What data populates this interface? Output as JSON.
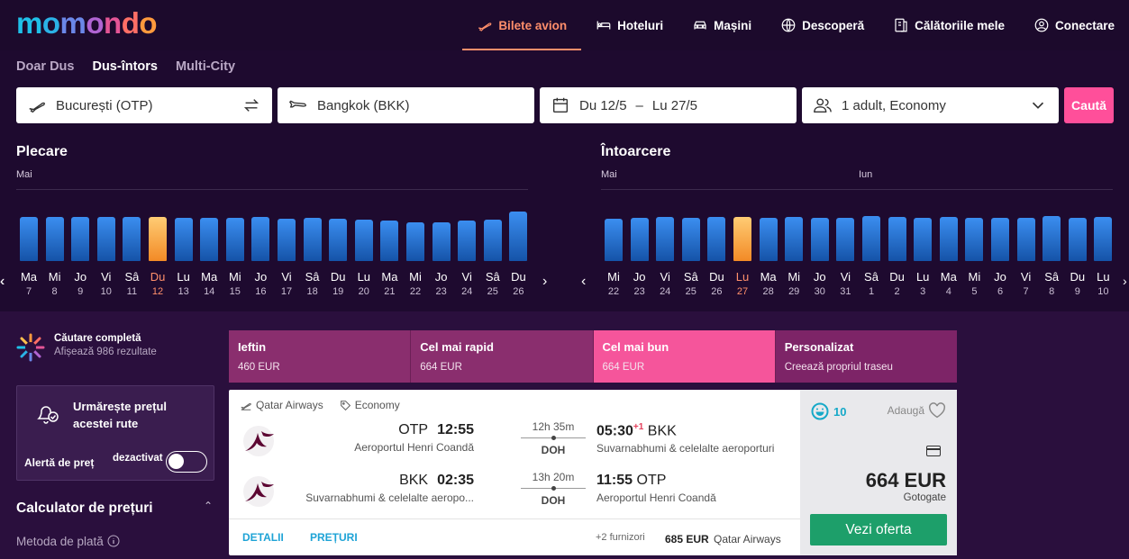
{
  "logo": {
    "text": "momondo",
    "letters": [
      {
        "c": "m",
        "color": "#1fc0e8"
      },
      {
        "c": "o",
        "color": "#2bb2e6"
      },
      {
        "c": "m",
        "color": "#6b87e8"
      },
      {
        "c": "o",
        "color": "#b064d2"
      },
      {
        "c": "n",
        "color": "#e45596"
      },
      {
        "c": "d",
        "color": "#ff6f66"
      },
      {
        "c": "o",
        "color": "#ff9a3d"
      }
    ]
  },
  "nav": [
    {
      "label": "Bilete avion",
      "icon": "plane-icon",
      "active": true
    },
    {
      "label": "Hoteluri",
      "icon": "bed-icon"
    },
    {
      "label": "Mașini",
      "icon": "car-icon"
    },
    {
      "label": "Descoperă",
      "icon": "globe-icon"
    },
    {
      "label": "Călătoriile mele",
      "icon": "trips-icon"
    },
    {
      "label": "Conectare",
      "icon": "user-icon"
    }
  ],
  "trip_tabs": [
    {
      "label": "Doar Dus"
    },
    {
      "label": "Dus-întors",
      "active": true
    },
    {
      "label": "Multi-City"
    }
  ],
  "search": {
    "origin": "București (OTP)",
    "destination": "Bangkok (BKK)",
    "date_from": "Du 12/5",
    "date_sep": "–",
    "date_to": "Lu 27/5",
    "travellers": "1 adult, Economy",
    "button": "Caută"
  },
  "departure": {
    "title": "Plecare",
    "months": [
      {
        "label": "Mai"
      }
    ],
    "days": [
      {
        "n": "Ma",
        "d": "7",
        "v": 0.88
      },
      {
        "n": "Mi",
        "d": "8",
        "v": 0.88
      },
      {
        "n": "Jo",
        "d": "9",
        "v": 0.88
      },
      {
        "n": "Vi",
        "d": "10",
        "v": 0.88
      },
      {
        "n": "Sâ",
        "d": "11",
        "v": 0.88
      },
      {
        "n": "Du",
        "d": "12",
        "v": 0.88,
        "sel": true
      },
      {
        "n": "Lu",
        "d": "13",
        "v": 0.86
      },
      {
        "n": "Ma",
        "d": "14",
        "v": 0.86
      },
      {
        "n": "Mi",
        "d": "15",
        "v": 0.86
      },
      {
        "n": "Jo",
        "d": "16",
        "v": 0.88
      },
      {
        "n": "Vi",
        "d": "17",
        "v": 0.84
      },
      {
        "n": "Sâ",
        "d": "18",
        "v": 0.86
      },
      {
        "n": "Du",
        "d": "19",
        "v": 0.84
      },
      {
        "n": "Lu",
        "d": "20",
        "v": 0.82
      },
      {
        "n": "Ma",
        "d": "21",
        "v": 0.8
      },
      {
        "n": "Mi",
        "d": "22",
        "v": 0.76
      },
      {
        "n": "Jo",
        "d": "23",
        "v": 0.77
      },
      {
        "n": "Vi",
        "d": "24",
        "v": 0.8
      },
      {
        "n": "Sâ",
        "d": "25",
        "v": 0.82
      },
      {
        "n": "Du",
        "d": "26",
        "v": 0.98
      }
    ]
  },
  "return": {
    "title": "Întoarcere",
    "months": [
      {
        "label": "Mai"
      },
      {
        "label": "Iun"
      }
    ],
    "days": [
      {
        "n": "Mi",
        "d": "22",
        "v": 0.84
      },
      {
        "n": "Jo",
        "d": "23",
        "v": 0.86
      },
      {
        "n": "Vi",
        "d": "24",
        "v": 0.88
      },
      {
        "n": "Sâ",
        "d": "25",
        "v": 0.86
      },
      {
        "n": "Du",
        "d": "26",
        "v": 0.88
      },
      {
        "n": "Lu",
        "d": "27",
        "v": 0.88,
        "sel": true
      },
      {
        "n": "Ma",
        "d": "28",
        "v": 0.86
      },
      {
        "n": "Mi",
        "d": "29",
        "v": 0.88
      },
      {
        "n": "Jo",
        "d": "30",
        "v": 0.86
      },
      {
        "n": "Vi",
        "d": "31",
        "v": 0.86
      },
      {
        "n": "Sâ",
        "d": "1",
        "v": 0.9
      },
      {
        "n": "Du",
        "d": "2",
        "v": 0.88
      },
      {
        "n": "Lu",
        "d": "3",
        "v": 0.86
      },
      {
        "n": "Ma",
        "d": "4",
        "v": 0.88
      },
      {
        "n": "Mi",
        "d": "5",
        "v": 0.86
      },
      {
        "n": "Jo",
        "d": "6",
        "v": 0.86
      },
      {
        "n": "Vi",
        "d": "7",
        "v": 0.86
      },
      {
        "n": "Sâ",
        "d": "8",
        "v": 0.9
      },
      {
        "n": "Du",
        "d": "9",
        "v": 0.86
      },
      {
        "n": "Lu",
        "d": "10",
        "v": 0.88
      }
    ]
  },
  "full_search": {
    "title": "Căutare completă",
    "subtitle": "Afișează 986 rezultate"
  },
  "price_alert": {
    "title": "Urmărește prețul acestei rute",
    "label": "Alertă de preț",
    "state": "dezactivat",
    "enabled": false
  },
  "calculator": {
    "title": "Calculator de prețuri",
    "payment_label": "Metoda de plată"
  },
  "sort_tabs": [
    {
      "title": "Ieftin",
      "sub": "460 EUR"
    },
    {
      "title": "Cel mai rapid",
      "sub": "664 EUR"
    },
    {
      "title": "Cel mai bun",
      "sub": "664 EUR",
      "active": true
    },
    {
      "title": "Personalizat",
      "sub": "Creează propriul traseu"
    }
  ],
  "result": {
    "airline": "Qatar Airways",
    "cabin": "Economy",
    "legs": [
      {
        "from_code": "OTP",
        "dep_time": "12:55",
        "from_airport": "Aeroportul Henri Coandă",
        "duration": "12h 35m",
        "stop": "DOH",
        "arr_time": "05:30",
        "day_offset": "+1",
        "to_code": "BKK",
        "to_airport": "Suvarnabhumi & celelalte aeroporturi"
      },
      {
        "from_code": "BKK",
        "dep_time": "02:35",
        "from_airport": "Suvarnabhumi & celelalte aeropo...",
        "duration": "13h 20m",
        "stop": "DOH",
        "arr_time": "11:55",
        "day_offset": "",
        "to_code": "OTP",
        "to_airport": "Aeroportul Henri Coandă"
      }
    ],
    "details_link": "DETALII",
    "prices_link": "PREȚURI",
    "providers": "+2 furnizori",
    "alt_price": "685 EUR",
    "alt_provider": "Qatar Airways",
    "score": "10",
    "add_label": "Adaugă",
    "price": "664 EUR",
    "price_source": "Gotogate",
    "offer_button": "Vezi oferta"
  }
}
